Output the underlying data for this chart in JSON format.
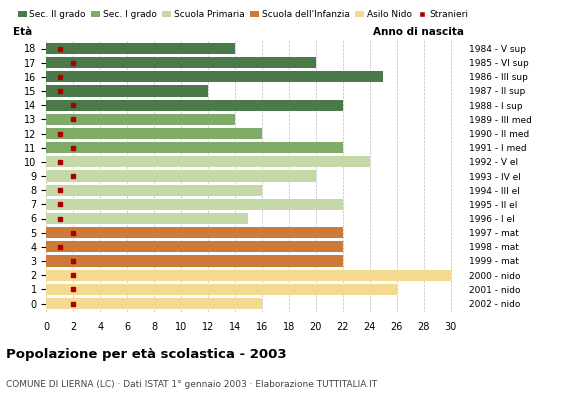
{
  "ages": [
    18,
    17,
    16,
    15,
    14,
    13,
    12,
    11,
    10,
    9,
    8,
    7,
    6,
    5,
    4,
    3,
    2,
    1,
    0
  ],
  "years": [
    "1984 - V sup",
    "1985 - VI sup",
    "1986 - III sup",
    "1987 - II sup",
    "1988 - I sup",
    "1989 - III med",
    "1990 - II med",
    "1991 - I med",
    "1992 - V el",
    "1993 - IV el",
    "1994 - III el",
    "1995 - II el",
    "1996 - I el",
    "1997 - mat",
    "1998 - mat",
    "1999 - mat",
    "2000 - nido",
    "2001 - nido",
    "2002 - nido"
  ],
  "values": [
    14,
    20,
    25,
    12,
    22,
    14,
    16,
    22,
    24,
    20,
    16,
    22,
    15,
    22,
    22,
    22,
    30,
    26,
    16
  ],
  "stranieri": [
    1,
    2,
    1,
    1,
    2,
    2,
    1,
    2,
    1,
    2,
    1,
    1,
    1,
    2,
    1,
    2,
    2,
    2,
    2
  ],
  "colors_by_age": {
    "18": "#4a7a4a",
    "17": "#4a7a4a",
    "16": "#4a7a4a",
    "15": "#4a7a4a",
    "14": "#4a7a4a",
    "13": "#7faa68",
    "12": "#7faa68",
    "11": "#7faa68",
    "10": "#c5d9a8",
    "9": "#c5d9a8",
    "8": "#c5d9a8",
    "7": "#c5d9a8",
    "6": "#c5d9a8",
    "5": "#cd7a38",
    "4": "#cd7a38",
    "3": "#cd7a38",
    "2": "#f5d990",
    "1": "#f5d990",
    "0": "#f5d990"
  },
  "stranieri_color": "#aa0000",
  "background_color": "#ffffff",
  "grid_color": "#bbbbbb",
  "xlim": [
    0,
    31
  ],
  "xticks": [
    0,
    2,
    4,
    6,
    8,
    10,
    12,
    14,
    16,
    18,
    20,
    22,
    24,
    26,
    28,
    30
  ],
  "title": "Popolazione per età scolastica - 2003",
  "subtitle": "COMUNE DI LIERNA (LC) · Dati ISTAT 1° gennaio 2003 · Elaborazione TUTTITALIA.IT",
  "label_eta": "Età",
  "label_anno": "Anno di nascita",
  "legend_labels": [
    "Sec. II grado",
    "Sec. I grado",
    "Scuola Primaria",
    "Scuola dell'Infanzia",
    "Asilo Nido",
    "Stranieri"
  ],
  "legend_colors": [
    "#4a7a4a",
    "#7faa68",
    "#c5d9a8",
    "#cd7a38",
    "#f5d990",
    "#aa0000"
  ],
  "bar_height": 0.78
}
